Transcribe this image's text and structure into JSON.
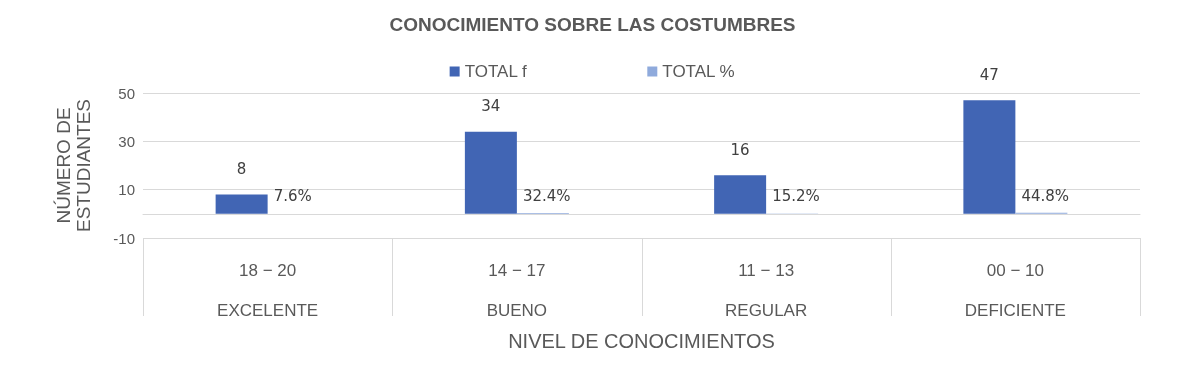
{
  "chart_data": {
    "type": "bar",
    "title": "CONOCIMIENTO SOBRE LAS COSTUMBRES",
    "xlabel": "NIVEL DE CONOCIMIENTOS",
    "ylabel": "NÚMERO DE\nESTUDIANTES",
    "categories": [
      "18 − 20\nEXCELENTE",
      "14 − 17\nBUENO",
      "11 − 13\nREGULAR",
      "00 − 10\nDEFICIENTE"
    ],
    "series": [
      {
        "name": "TOTAL f",
        "color": "#4165b4",
        "values": [
          8,
          34,
          16,
          47
        ],
        "value_labels": [
          "8",
          "34",
          "16",
          "47"
        ]
      },
      {
        "name": "TOTAL %",
        "color": "#8faadc",
        "values": [
          0.076,
          0.324,
          0.152,
          0.448
        ],
        "value_labels": [
          "7.6%",
          "32.4%",
          "15.2%",
          "44.8%"
        ]
      }
    ],
    "ylim": [
      -10,
      50
    ],
    "yticks": [
      -10,
      10,
      30,
      50
    ],
    "grid": "y",
    "legend": "top"
  }
}
